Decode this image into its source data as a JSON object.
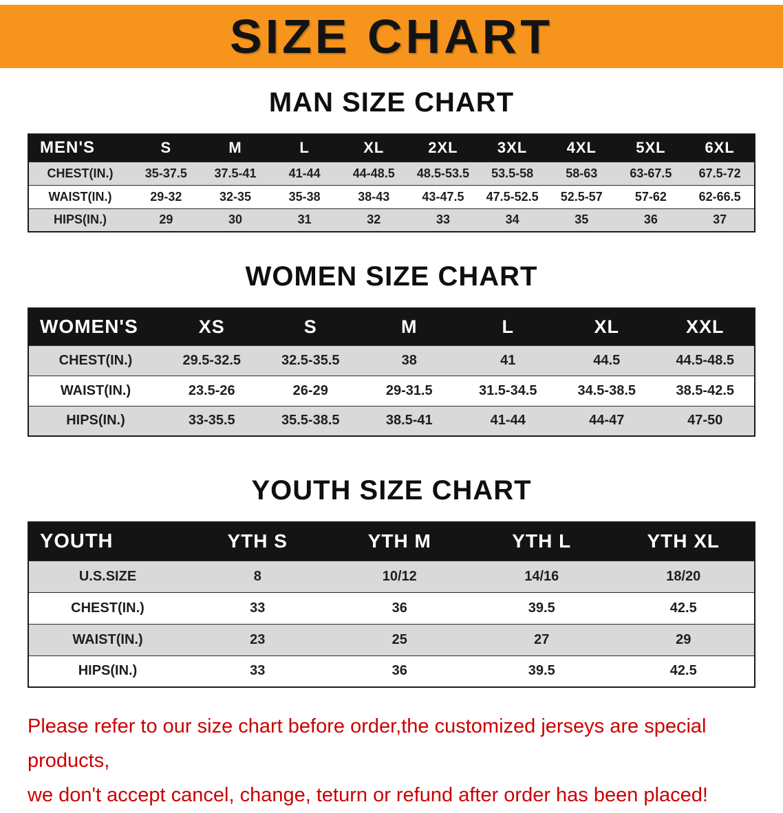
{
  "banner": {
    "title": "SIZE CHART",
    "bg_color": "#f7941e",
    "text_color": "#131313"
  },
  "chart_data": [
    {
      "type": "table",
      "title": "MAN SIZE CHART",
      "header": [
        "MEN'S",
        "S",
        "M",
        "L",
        "XL",
        "2XL",
        "3XL",
        "4XL",
        "5XL",
        "6XL"
      ],
      "rows": [
        [
          "CHEST(IN.)",
          "35-37.5",
          "37.5-41",
          "41-44",
          "44-48.5",
          "48.5-53.5",
          "53.5-58",
          "58-63",
          "63-67.5",
          "67.5-72"
        ],
        [
          "WAIST(IN.)",
          "29-32",
          "32-35",
          "35-38",
          "38-43",
          "43-47.5",
          "47.5-52.5",
          "52.5-57",
          "57-62",
          "62-66.5"
        ],
        [
          "HIPS(IN.)",
          "29",
          "30",
          "31",
          "32",
          "33",
          "34",
          "35",
          "36",
          "37"
        ]
      ]
    },
    {
      "type": "table",
      "title": "WOMEN SIZE CHART",
      "header": [
        "WOMEN'S",
        "XS",
        "S",
        "M",
        "L",
        "XL",
        "XXL"
      ],
      "rows": [
        [
          "CHEST(IN.)",
          "29.5-32.5",
          "32.5-35.5",
          "38",
          "41",
          "44.5",
          "44.5-48.5"
        ],
        [
          "WAIST(IN.)",
          "23.5-26",
          "26-29",
          "29-31.5",
          "31.5-34.5",
          "34.5-38.5",
          "38.5-42.5"
        ],
        [
          "HIPS(IN.)",
          "33-35.5",
          "35.5-38.5",
          "38.5-41",
          "41-44",
          "44-47",
          "47-50"
        ]
      ]
    },
    {
      "type": "table",
      "title": "YOUTH SIZE CHART",
      "header": [
        "YOUTH",
        "YTH S",
        "YTH M",
        "YTH L",
        "YTH XL"
      ],
      "rows": [
        [
          "U.S.SIZE",
          "8",
          "10/12",
          "14/16",
          "18/20"
        ],
        [
          "CHEST(IN.)",
          "33",
          "36",
          "39.5",
          "42.5"
        ],
        [
          "WAIST(IN.)",
          "23",
          "25",
          "27",
          "29"
        ],
        [
          "HIPS(IN.)",
          "33",
          "36",
          "39.5",
          "42.5"
        ]
      ]
    }
  ],
  "footer": {
    "line1": "Please refer to our size chart before order,the customized jerseys are special products,",
    "line2": "we don't accept cancel, change, teturn or refund after order has been placed!",
    "text_color": "#cc0000"
  }
}
